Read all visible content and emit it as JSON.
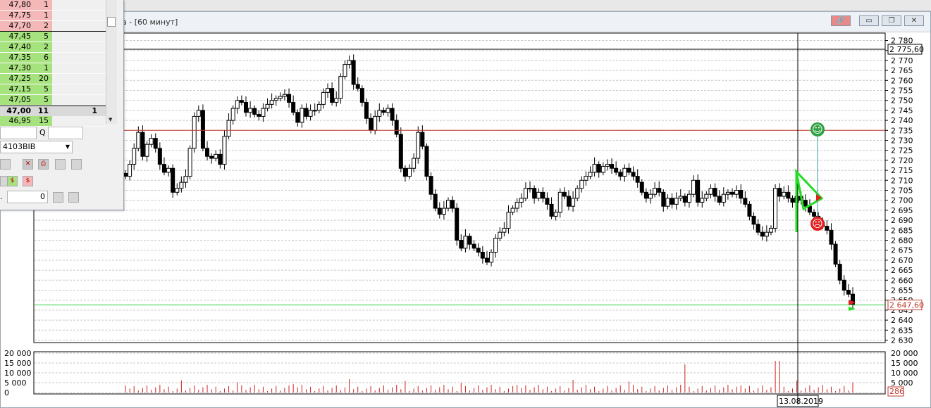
{
  "window": {
    "title": "а - [60 минут]",
    "buttons": {
      "link": "🔗",
      "minimize": "▭",
      "restore": "❐",
      "close": "✕"
    }
  },
  "chart_data": {
    "type": "candlestick",
    "y_ticks": [
      "2 780",
      "2 775",
      "2 770",
      "2 765",
      "2 760",
      "2 755",
      "2 750",
      "2 745",
      "2 740",
      "2 735",
      "2 730",
      "2 725",
      "2 720",
      "2 715",
      "2 710",
      "2 705",
      "2 700",
      "2 695",
      "2 690",
      "2 685",
      "2 680",
      "2 675",
      "2 670",
      "2 665",
      "2 660",
      "2 655",
      "2 650",
      "2 645",
      "2 640",
      "2 635",
      "2 630"
    ],
    "ylim": [
      2629,
      2782
    ],
    "lines": {
      "crosshair_price": "2 775,60",
      "last_price": "2 647,60",
      "red_level": 2735
    },
    "crosshair_date": "13.08.2019",
    "closes": [
      2712,
      2718,
      2726,
      2734,
      2722,
      2728,
      2731,
      2726,
      2718,
      2714,
      2716,
      2704,
      2706,
      2709,
      2712,
      2726,
      2742,
      2745,
      2726,
      2722,
      2721,
      2723,
      2718,
      2732,
      2740,
      2746,
      2750,
      2749,
      2744,
      2746,
      2743,
      2742,
      2746,
      2748,
      2750,
      2751,
      2752,
      2753,
      2749,
      2744,
      2739,
      2746,
      2742,
      2745,
      2745,
      2748,
      2754,
      2756,
      2749,
      2751,
      2762,
      2768,
      2770,
      2758,
      2756,
      2749,
      2741,
      2735,
      2742,
      2745,
      2744,
      2746,
      2740,
      2733,
      2716,
      2712,
      2716,
      2721,
      2734,
      2727,
      2712,
      2703,
      2696,
      2693,
      2696,
      2700,
      2696,
      2680,
      2676,
      2682,
      2678,
      2676,
      2674,
      2671,
      2669,
      2674,
      2681,
      2684,
      2686,
      2694,
      2696,
      2699,
      2701,
      2706,
      2706,
      2701,
      2704,
      2701,
      2698,
      2692,
      2694,
      2704,
      2702,
      2697,
      2701,
      2706,
      2710,
      2712,
      2714,
      2718,
      2714,
      2717,
      2718,
      2716,
      2714,
      2712,
      2716,
      2714,
      2712,
      2709,
      2704,
      2701,
      2703,
      2706,
      2704,
      2697,
      2701,
      2698,
      2701,
      2702,
      2699,
      2703,
      2710,
      2699,
      2701,
      2703,
      2706,
      2702,
      2699,
      2703,
      2704,
      2703,
      2705,
      2701,
      2698,
      2692,
      2688,
      2684,
      2682,
      2684,
      2686,
      2706,
      2702,
      2704,
      2701,
      2699,
      2702,
      2700,
      2697,
      2694,
      2692,
      2689,
      2687,
      2685,
      2678,
      2668,
      2660,
      2655,
      2653,
      2648
    ],
    "volume_ticks": [
      "20 000",
      "15 000",
      "10 000",
      "5 000",
      "0"
    ],
    "volume_last": "286",
    "volume_max": 20000,
    "markers": {
      "green_smiley": "☺",
      "red_frown": "☹"
    }
  },
  "order_book": {
    "rows": [
      {
        "price": "47,80",
        "qty": "1",
        "side": "sell",
        "mine": ""
      },
      {
        "price": "47,75",
        "qty": "1",
        "side": "sell",
        "mine": ""
      },
      {
        "price": "47,70",
        "qty": "2",
        "side": "sell",
        "mine": ""
      },
      {
        "price": "47,45",
        "qty": "5",
        "side": "buy",
        "mine": ""
      },
      {
        "price": "47,40",
        "qty": "2",
        "side": "buy",
        "mine": ""
      },
      {
        "price": "47,35",
        "qty": "6",
        "side": "buy",
        "mine": ""
      },
      {
        "price": "47,30",
        "qty": "1",
        "side": "buy",
        "mine": ""
      },
      {
        "price": "47,25",
        "qty": "20",
        "side": "buy",
        "mine": ""
      },
      {
        "price": "47,15",
        "qty": "5",
        "side": "buy",
        "mine": ""
      },
      {
        "price": "47,05",
        "qty": "5",
        "side": "buy",
        "mine": ""
      },
      {
        "price": "47,00",
        "qty": "11",
        "side": "best",
        "mine": "1"
      },
      {
        "price": "46,95",
        "qty": "15",
        "side": "buy",
        "mine": ""
      }
    ],
    "q_label": "Q",
    "account": "4103BIB",
    "qty_prefix": ".",
    "qty_value": "0"
  }
}
